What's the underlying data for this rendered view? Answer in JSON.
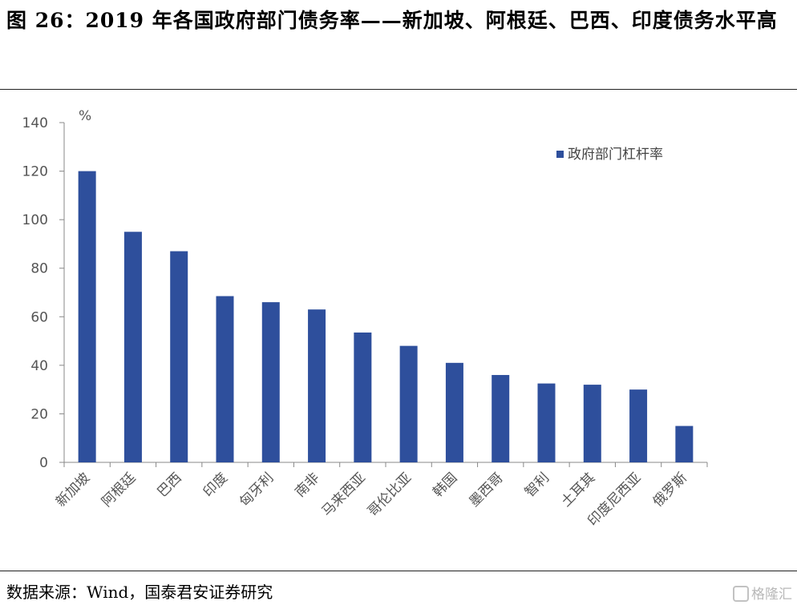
{
  "header": {
    "title": "图 26：2019 年各国政府部门债务率——新加坡、阿根廷、巴西、印度债务水平高"
  },
  "footer": {
    "source": "数据来源：Wind，国泰君安证券研究",
    "watermark": "格隆汇"
  },
  "chart_data": {
    "type": "bar",
    "title": "",
    "xlabel": "",
    "ylabel": "",
    "unit_label": "%",
    "categories": [
      "新加坡",
      "阿根廷",
      "巴西",
      "印度",
      "匈牙利",
      "南非",
      "马来西亚",
      "哥伦比亚",
      "韩国",
      "墨西哥",
      "智利",
      "土耳其",
      "印度尼西亚",
      "俄罗斯"
    ],
    "series": [
      {
        "name": "政府部门杠杆率",
        "values": [
          120,
          95,
          87,
          68.5,
          66,
          63,
          53.5,
          48,
          41,
          36,
          32.5,
          32,
          30,
          15
        ],
        "color": "#2E4F9C"
      }
    ],
    "ylim": [
      0,
      140
    ],
    "yticks": [
      0,
      20,
      40,
      60,
      80,
      100,
      120,
      140
    ],
    "grid": false,
    "legend_position": "top-right"
  }
}
